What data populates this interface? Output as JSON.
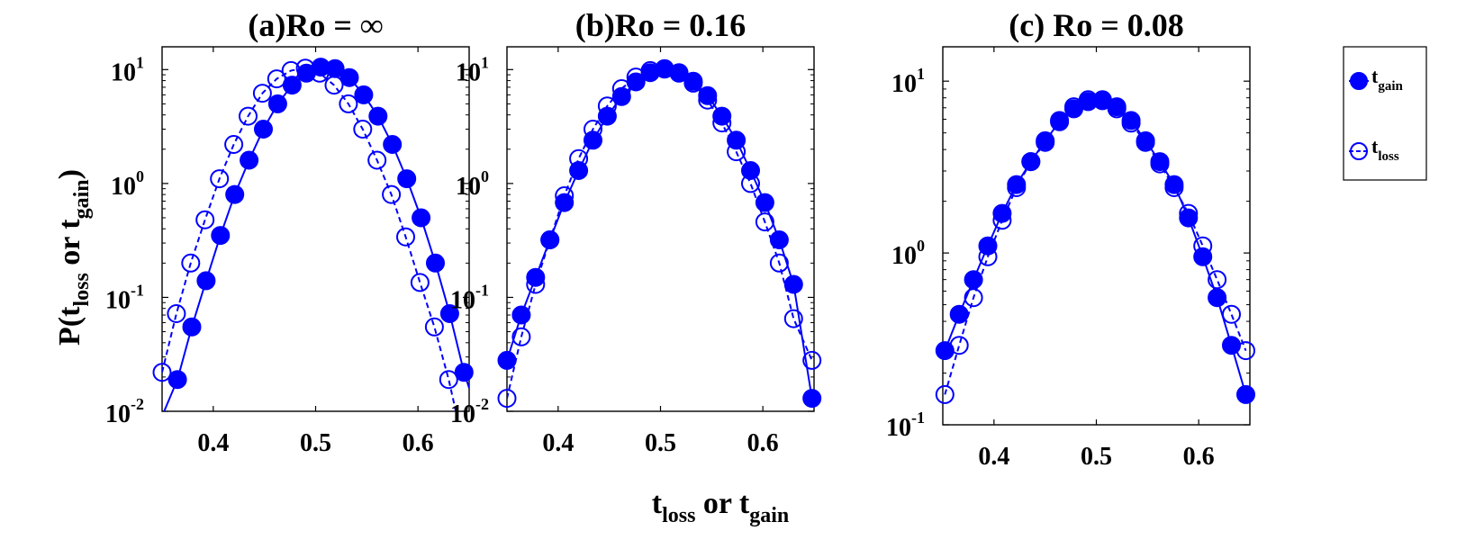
{
  "chart_data": {
    "ylabel": {
      "main": "P(t",
      "sub1": "loss",
      "mid": " or t",
      "sub2": "gain",
      "end": ")"
    },
    "xlabel": {
      "main1": "t",
      "sub1": "loss",
      "mid": " or t",
      "sub2": "gain"
    },
    "legend": {
      "gain": {
        "main": "t",
        "sub": "gain"
      },
      "loss": {
        "main": "t",
        "sub": "loss"
      }
    },
    "colors": {
      "series": "#0000ff",
      "axes": "#000000"
    },
    "panels": [
      {
        "title": "(a)Ro = ∞",
        "type": "scatter-line",
        "xlim": [
          0.35,
          0.65
        ],
        "ylog": true,
        "ylim_exp": [
          -2,
          1.2
        ],
        "xticks": [
          "0.4",
          "0.5",
          "0.6"
        ],
        "xtick_values": [
          0.4,
          0.5,
          0.6
        ],
        "yticks": [
          {
            "base": "10",
            "exp": "-2",
            "v": -2
          },
          {
            "base": "10",
            "exp": "-1",
            "v": -1
          },
          {
            "base": "10",
            "exp": "0",
            "v": 0
          },
          {
            "base": "10",
            "exp": "1",
            "v": 1
          }
        ],
        "gain": {
          "x": [
            0.365,
            0.379,
            0.393,
            0.407,
            0.421,
            0.435,
            0.449,
            0.463,
            0.477,
            0.491,
            0.505,
            0.519,
            0.533,
            0.547,
            0.561,
            0.575,
            0.589,
            0.603,
            0.617,
            0.631,
            0.645
          ],
          "y": [
            0.019,
            0.055,
            0.14,
            0.35,
            0.8,
            1.6,
            3.0,
            5.0,
            7.3,
            9.3,
            10.5,
            10.2,
            8.5,
            6.0,
            3.9,
            2.2,
            1.1,
            0.5,
            0.2,
            0.072,
            0.022
          ],
          "curve_x": [
            0.352,
            0.365,
            0.379,
            0.393,
            0.407,
            0.421,
            0.435,
            0.449,
            0.463,
            0.477,
            0.491,
            0.505,
            0.519,
            0.533,
            0.547,
            0.561,
            0.575,
            0.589,
            0.603,
            0.617,
            0.631,
            0.645,
            0.65
          ],
          "curve_y": [
            0.01,
            0.019,
            0.055,
            0.14,
            0.35,
            0.8,
            1.6,
            3.0,
            5.0,
            7.3,
            9.3,
            10.5,
            10.2,
            8.5,
            6.0,
            3.9,
            2.2,
            1.1,
            0.5,
            0.2,
            0.072,
            0.022,
            0.016
          ]
        },
        "loss": {
          "x": [
            0.35,
            0.364,
            0.378,
            0.392,
            0.406,
            0.42,
            0.434,
            0.448,
            0.462,
            0.476,
            0.49,
            0.504,
            0.518,
            0.532,
            0.546,
            0.56,
            0.574,
            0.588,
            0.602,
            0.616,
            0.63
          ],
          "y": [
            0.022,
            0.072,
            0.2,
            0.48,
            1.1,
            2.2,
            3.9,
            6.2,
            8.3,
            9.8,
            10.3,
            9.3,
            7.3,
            5.0,
            3.0,
            1.6,
            0.8,
            0.34,
            0.135,
            0.055,
            0.019
          ],
          "curve_x": [
            0.35,
            0.364,
            0.378,
            0.392,
            0.406,
            0.42,
            0.434,
            0.448,
            0.462,
            0.476,
            0.49,
            0.504,
            0.518,
            0.532,
            0.546,
            0.56,
            0.574,
            0.588,
            0.602,
            0.616,
            0.63,
            0.637
          ],
          "curve_y": [
            0.022,
            0.072,
            0.2,
            0.48,
            1.1,
            2.2,
            3.9,
            6.2,
            8.3,
            9.8,
            10.3,
            9.3,
            7.3,
            5.0,
            3.0,
            1.6,
            0.8,
            0.34,
            0.135,
            0.055,
            0.019,
            0.01
          ]
        }
      },
      {
        "title": "(b)Ro = 0.16",
        "type": "scatter-line",
        "xlim": [
          0.35,
          0.65
        ],
        "ylog": true,
        "ylim_exp": [
          -2,
          1.2
        ],
        "xticks": [
          "0.4",
          "0.5",
          "0.6"
        ],
        "xtick_values": [
          0.4,
          0.5,
          0.6
        ],
        "yticks": [
          {
            "base": "10",
            "exp": "-2",
            "v": -2
          },
          {
            "base": "10",
            "exp": "-1",
            "v": -1
          },
          {
            "base": "10",
            "exp": "0",
            "v": 0
          },
          {
            "base": "10",
            "exp": "1",
            "v": 1
          }
        ],
        "gain": {
          "x": [
            0.35,
            0.364,
            0.378,
            0.392,
            0.406,
            0.42,
            0.434,
            0.448,
            0.462,
            0.476,
            0.49,
            0.504,
            0.518,
            0.532,
            0.546,
            0.56,
            0.574,
            0.588,
            0.602,
            0.616,
            0.63,
            0.648
          ],
          "y": [
            0.028,
            0.07,
            0.15,
            0.32,
            0.68,
            1.3,
            2.4,
            3.9,
            5.8,
            7.8,
            9.4,
            10.2,
            9.3,
            7.9,
            5.9,
            3.9,
            2.4,
            1.3,
            0.68,
            0.32,
            0.13,
            0.013
          ],
          "curve_x": [
            0.35,
            0.364,
            0.378,
            0.392,
            0.406,
            0.42,
            0.434,
            0.448,
            0.462,
            0.476,
            0.49,
            0.504,
            0.518,
            0.532,
            0.546,
            0.56,
            0.574,
            0.588,
            0.602,
            0.616,
            0.63,
            0.648
          ],
          "curve_y": [
            0.028,
            0.07,
            0.15,
            0.32,
            0.68,
            1.3,
            2.4,
            3.9,
            5.8,
            7.8,
            9.4,
            10.2,
            9.3,
            7.9,
            5.9,
            3.9,
            2.4,
            1.3,
            0.68,
            0.32,
            0.13,
            0.013
          ]
        },
        "loss": {
          "x": [
            0.35,
            0.364,
            0.378,
            0.392,
            0.406,
            0.42,
            0.434,
            0.448,
            0.462,
            0.476,
            0.49,
            0.504,
            0.518,
            0.532,
            0.546,
            0.56,
            0.574,
            0.588,
            0.602,
            0.616,
            0.63,
            0.648
          ],
          "y": [
            0.013,
            0.045,
            0.13,
            0.32,
            0.78,
            1.65,
            3.0,
            4.8,
            6.8,
            8.6,
            9.8,
            10.1,
            9.4,
            7.6,
            5.4,
            3.4,
            1.9,
            1.0,
            0.46,
            0.2,
            0.065,
            0.028
          ],
          "curve_x": [
            0.35,
            0.364,
            0.378,
            0.392,
            0.406,
            0.42,
            0.434,
            0.448,
            0.462,
            0.476,
            0.49,
            0.504,
            0.518,
            0.532,
            0.546,
            0.56,
            0.574,
            0.588,
            0.602,
            0.616,
            0.63,
            0.648
          ],
          "curve_y": [
            0.013,
            0.045,
            0.13,
            0.32,
            0.78,
            1.65,
            3.0,
            4.8,
            6.8,
            8.6,
            9.8,
            10.1,
            9.4,
            7.6,
            5.4,
            3.4,
            1.9,
            1.0,
            0.46,
            0.2,
            0.065,
            0.028
          ]
        }
      },
      {
        "title": "(c) Ro = 0.08",
        "type": "scatter-line",
        "xlim": [
          0.35,
          0.65
        ],
        "ylog": true,
        "ylim_exp": [
          -1,
          1.2
        ],
        "xticks": [
          "0.4",
          "0.5",
          "0.6"
        ],
        "xtick_values": [
          0.4,
          0.5,
          0.6
        ],
        "yticks": [
          {
            "base": "10",
            "exp": "-1",
            "v": -1
          },
          {
            "base": "10",
            "exp": "0",
            "v": 0
          },
          {
            "base": "10",
            "exp": "1",
            "v": 1
          }
        ],
        "gain": {
          "x": [
            0.352,
            0.366,
            0.38,
            0.394,
            0.408,
            0.422,
            0.436,
            0.45,
            0.464,
            0.478,
            0.492,
            0.506,
            0.52,
            0.534,
            0.548,
            0.562,
            0.576,
            0.59,
            0.604,
            0.618,
            0.632,
            0.646
          ],
          "y": [
            0.27,
            0.44,
            0.7,
            1.1,
            1.7,
            2.5,
            3.4,
            4.5,
            5.8,
            6.9,
            7.6,
            7.8,
            7.1,
            5.9,
            4.5,
            3.4,
            2.5,
            1.6,
            0.95,
            0.55,
            0.29,
            0.15
          ],
          "curve_x": [
            0.352,
            0.366,
            0.38,
            0.394,
            0.408,
            0.422,
            0.436,
            0.45,
            0.464,
            0.478,
            0.492,
            0.506,
            0.52,
            0.534,
            0.548,
            0.562,
            0.576,
            0.59,
            0.604,
            0.618,
            0.632,
            0.646
          ],
          "curve_y": [
            0.27,
            0.44,
            0.7,
            1.1,
            1.7,
            2.5,
            3.4,
            4.5,
            5.8,
            6.9,
            7.6,
            7.8,
            7.1,
            5.9,
            4.5,
            3.4,
            2.5,
            1.6,
            0.95,
            0.55,
            0.29,
            0.15
          ]
        },
        "loss": {
          "x": [
            0.352,
            0.366,
            0.38,
            0.394,
            0.408,
            0.422,
            0.436,
            0.45,
            0.464,
            0.478,
            0.492,
            0.506,
            0.52,
            0.534,
            0.548,
            0.562,
            0.576,
            0.59,
            0.604,
            0.618,
            0.632,
            0.646
          ],
          "y": [
            0.15,
            0.29,
            0.55,
            0.95,
            1.55,
            2.4,
            3.4,
            4.4,
            5.9,
            7.1,
            7.8,
            7.7,
            6.9,
            5.7,
            4.4,
            3.3,
            2.4,
            1.7,
            1.1,
            0.7,
            0.44,
            0.27
          ],
          "curve_x": [
            0.352,
            0.366,
            0.38,
            0.394,
            0.408,
            0.422,
            0.436,
            0.45,
            0.464,
            0.478,
            0.492,
            0.506,
            0.52,
            0.534,
            0.548,
            0.562,
            0.576,
            0.59,
            0.604,
            0.618,
            0.632,
            0.646
          ],
          "curve_y": [
            0.15,
            0.29,
            0.55,
            0.95,
            1.55,
            2.4,
            3.4,
            4.4,
            5.9,
            7.1,
            7.8,
            7.7,
            6.9,
            5.7,
            4.4,
            3.3,
            2.4,
            1.7,
            1.1,
            0.7,
            0.44,
            0.27
          ]
        }
      }
    ]
  }
}
